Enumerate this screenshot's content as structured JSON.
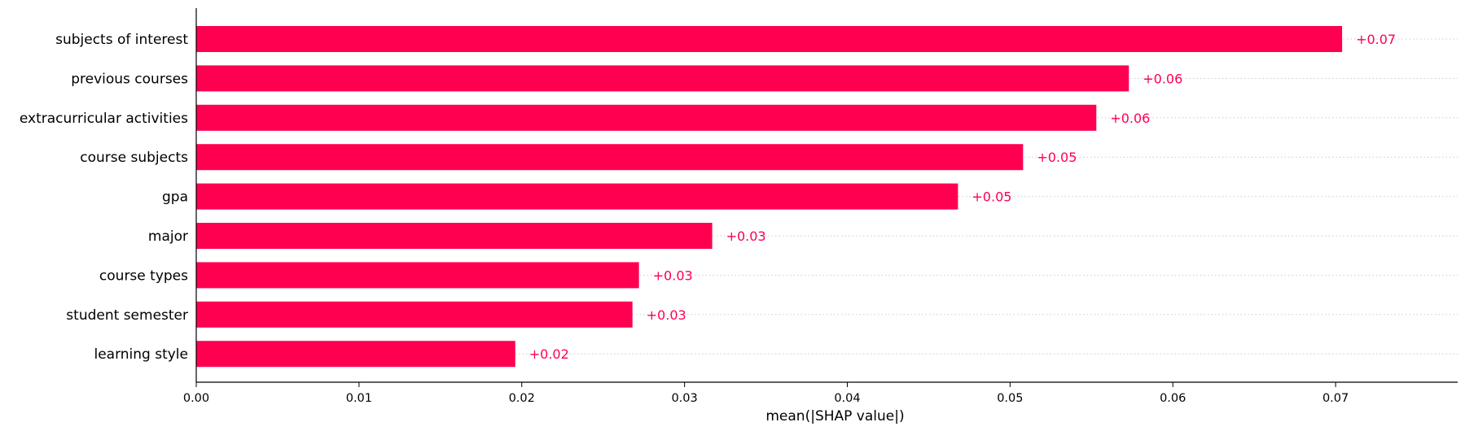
{
  "chart_data": {
    "type": "bar",
    "orientation": "horizontal",
    "categories": [
      "subjects of interest",
      "previous courses",
      "extracurricular activities",
      "course subjects",
      "gpa",
      "major",
      "course types",
      "student semester",
      "learning style"
    ],
    "values": [
      0.0704,
      0.0573,
      0.0553,
      0.0508,
      0.0468,
      0.0317,
      0.0272,
      0.0268,
      0.0196
    ],
    "value_labels": [
      "+0.07",
      "+0.06",
      "+0.06",
      "+0.05",
      "+0.05",
      "+0.03",
      "+0.03",
      "+0.03",
      "+0.02"
    ],
    "xlabel": "mean(|SHAP value|)",
    "ylabel": "",
    "xlim": [
      0,
      0.0775
    ],
    "x_ticks": [
      0,
      0.01,
      0.02,
      0.03,
      0.04,
      0.05,
      0.06,
      0.07
    ],
    "x_tick_labels": [
      "0.00",
      "0.01",
      "0.02",
      "0.03",
      "0.04",
      "0.05",
      "0.06",
      "0.07"
    ],
    "grid": "dotted horizontal guide per row",
    "colors": {
      "bar": "#ff0051",
      "value_label": "#ff0051",
      "axis": "#000000",
      "guide": "#cccccc"
    }
  }
}
